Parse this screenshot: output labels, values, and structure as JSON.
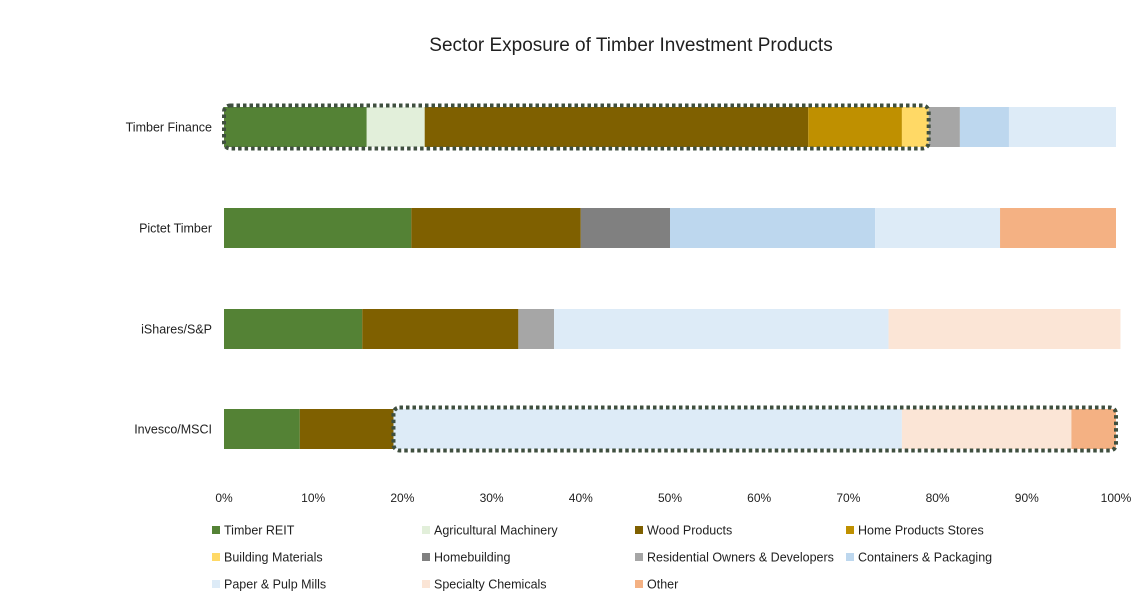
{
  "chart_data": {
    "type": "bar",
    "orientation": "horizontal",
    "stacked": "percent",
    "title": "Sector Exposure of Timber Investment Products",
    "categories": [
      "Timber Finance",
      "Pictet Timber",
      "iShares/S&P",
      "Invesco/MSCI"
    ],
    "xlim": [
      0,
      100
    ],
    "x_ticks": [
      "0%",
      "10%",
      "20%",
      "30%",
      "40%",
      "50%",
      "60%",
      "70%",
      "80%",
      "90%",
      "100%"
    ],
    "grid": false,
    "legend_position": "bottom",
    "series": [
      {
        "name": "Timber REIT",
        "color": "#548235",
        "values": [
          16,
          21,
          15.5,
          8.5
        ]
      },
      {
        "name": "Agricultural Machinery",
        "color": "#e2efda",
        "values": [
          6.5,
          0,
          0,
          0
        ]
      },
      {
        "name": "Wood Products",
        "color": "#7f6000",
        "values": [
          43,
          19,
          17.5,
          10.5
        ]
      },
      {
        "name": "Home Products Stores",
        "color": "#bf9000",
        "values": [
          10.5,
          0,
          0,
          0
        ]
      },
      {
        "name": "Building Materials",
        "color": "#ffd966",
        "values": [
          3,
          0,
          0,
          0
        ]
      },
      {
        "name": "Homebuilding",
        "color": "#808080",
        "values": [
          0,
          10,
          0,
          0
        ]
      },
      {
        "name": "Residential Owners & Developers",
        "color": "#a6a6a6",
        "values": [
          3.5,
          0,
          4,
          0
        ]
      },
      {
        "name": "Containers & Packaging",
        "color": "#bdd7ee",
        "values": [
          5.5,
          23,
          0,
          0
        ]
      },
      {
        "name": "Paper & Pulp Mills",
        "color": "#ddebf7",
        "values": [
          12,
          14,
          37.5,
          57
        ]
      },
      {
        "name": "Specialty Chemicals",
        "color": "#fbe5d6",
        "values": [
          0,
          0,
          26,
          19
        ]
      },
      {
        "name": "Other",
        "color": "#f4b183",
        "values": [
          0,
          13,
          0,
          5
        ]
      }
    ],
    "highlights": [
      {
        "category": "Timber Finance",
        "from_series": "Timber REIT",
        "to_series": "Building Materials"
      },
      {
        "category": "Invesco/MSCI",
        "from_series": "Paper & Pulp Mills",
        "to_series": "Other"
      }
    ]
  }
}
